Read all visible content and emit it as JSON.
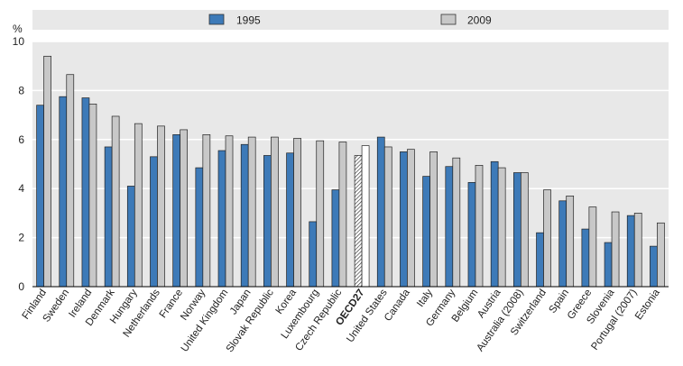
{
  "chart_data": {
    "type": "bar",
    "ylabel": "%",
    "ylim": [
      0,
      10
    ],
    "yticks": [
      0,
      2,
      4,
      6,
      8,
      10
    ],
    "grid": true,
    "legend_position": "top",
    "highlight_category": "OECD27",
    "categories": [
      "Finland",
      "Sweden",
      "Ireland",
      "Denmark",
      "Hungary",
      "Netherlands",
      "France",
      "Norway",
      "United Kingdom",
      "Japan",
      "Slovak Republic",
      "Korea",
      "Luxembourg",
      "Czech Republic",
      "OECD27",
      "United States",
      "Canada",
      "Italy",
      "Germany",
      "Belgium",
      "Austria",
      "Australia (2008)",
      "Switzerland",
      "Spain",
      "Greece",
      "Slovenia",
      "Portugal (2007)",
      "Estonia"
    ],
    "series": [
      {
        "name": "1995",
        "color": "#3d7ab8",
        "values": [
          7.4,
          7.75,
          7.7,
          5.7,
          4.1,
          5.3,
          6.2,
          4.85,
          5.55,
          5.8,
          5.35,
          5.45,
          2.65,
          3.95,
          5.35,
          6.1,
          5.5,
          4.5,
          4.9,
          4.25,
          5.1,
          4.65,
          2.2,
          3.5,
          2.35,
          1.8,
          2.9,
          1.65
        ]
      },
      {
        "name": "2009",
        "color": "#c8c8c8",
        "values": [
          9.4,
          8.65,
          7.45,
          6.95,
          6.65,
          6.55,
          6.4,
          6.2,
          6.15,
          6.1,
          6.1,
          6.05,
          5.95,
          5.9,
          5.75,
          5.7,
          5.6,
          5.5,
          5.25,
          4.95,
          4.85,
          4.65,
          3.95,
          3.7,
          3.25,
          3.05,
          3.0,
          2.6
        ]
      }
    ]
  }
}
